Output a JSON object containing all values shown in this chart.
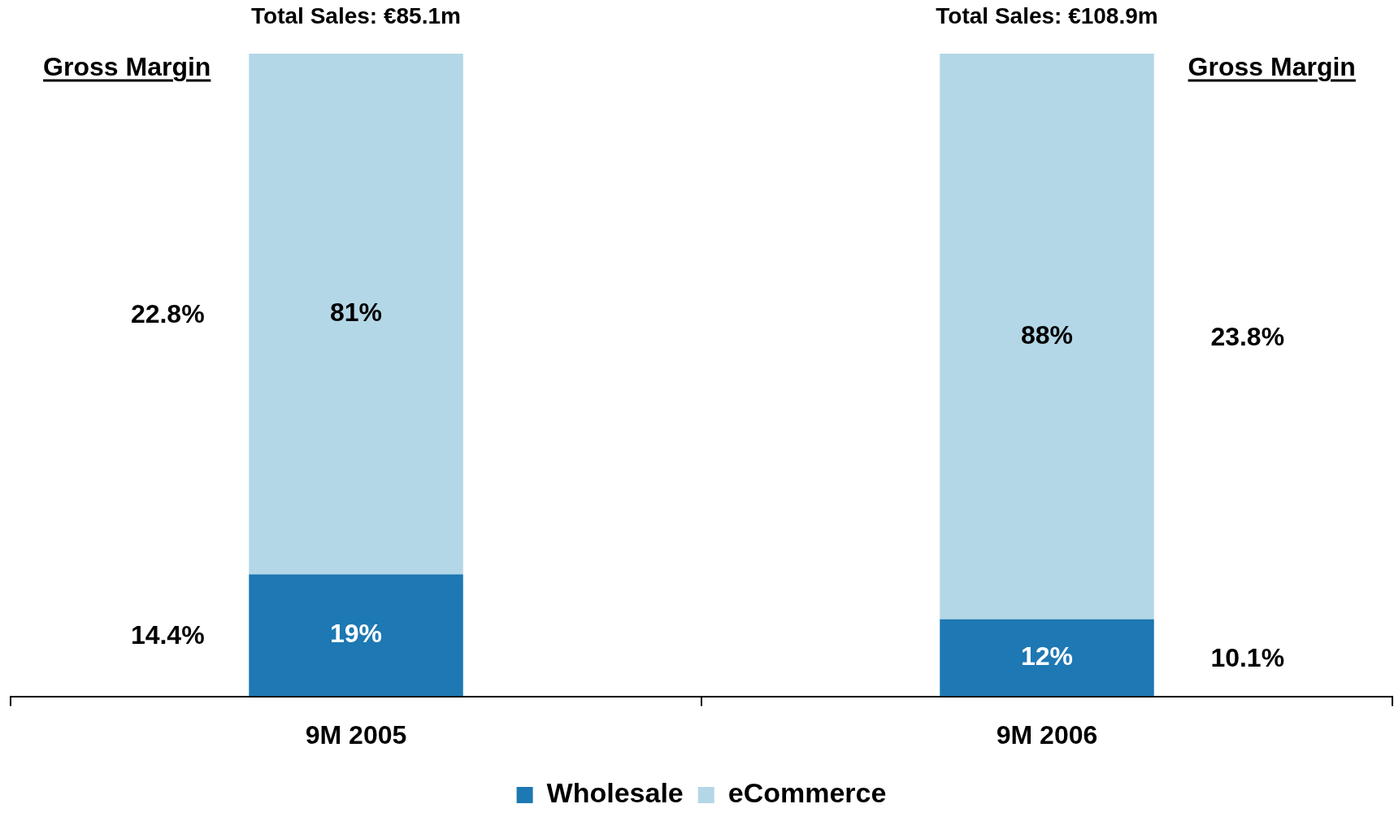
{
  "chart_data": {
    "type": "bar",
    "stacked": true,
    "categories": [
      "9M 2005",
      "9M 2006"
    ],
    "series": [
      {
        "name": "Wholesale",
        "color": "#1d78b3",
        "values": [
          19,
          12
        ],
        "value_labels": [
          "19%",
          "12%"
        ]
      },
      {
        "name": "eCommerce",
        "color": "#b3d7e6",
        "values": [
          81,
          88
        ],
        "value_labels": [
          "81%",
          "88%"
        ]
      }
    ],
    "tick_labels": "x",
    "grid": false,
    "legend": "bottom",
    "annotations": [
      "Total Sales: €85.1m",
      "Gross Margin",
      "22.8%",
      "14.4%",
      "Total Sales: €108.9m",
      "Gross Margin",
      "23.8%",
      "10.1%"
    ]
  }
}
